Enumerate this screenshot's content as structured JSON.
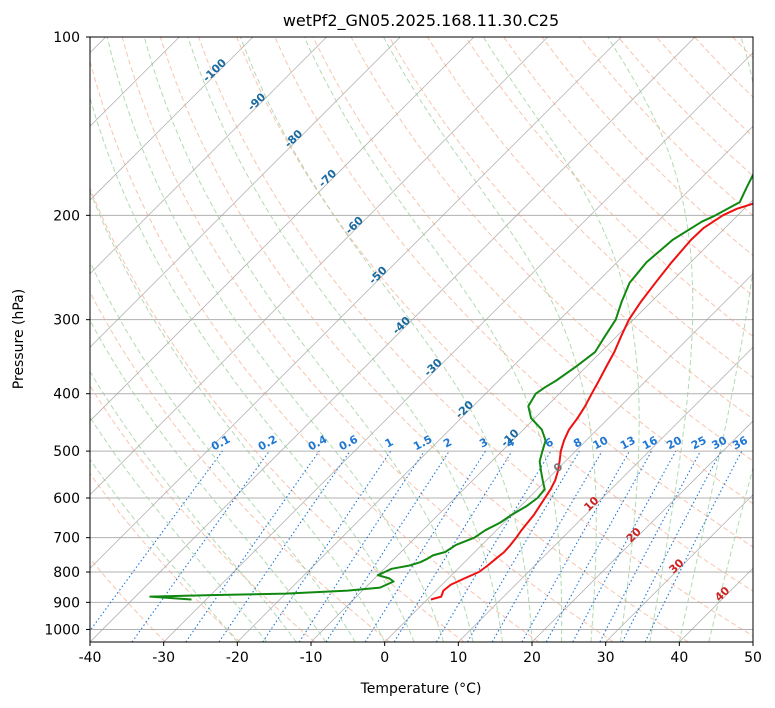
{
  "chart_data": {
    "type": "line",
    "title": "wetPf2_GN05.2025.168.11.30.C25",
    "xlabel": "Temperature (°C)",
    "ylabel": "Pressure (hPa)",
    "xlim": [
      -40,
      50
    ],
    "ylim": [
      1050,
      100
    ],
    "y_scale": "log",
    "grid": true,
    "x_ticks": [
      -40,
      -30,
      -20,
      -10,
      0,
      10,
      20,
      30,
      40,
      50
    ],
    "y_ticks": [
      100,
      200,
      300,
      400,
      500,
      600,
      700,
      800,
      900,
      1000
    ],
    "colors": {
      "temperature": "#ee1111",
      "dewpoint": "#118811",
      "isotherm": "#999999",
      "dry_adiabat": "#f4a582",
      "moist_adiabat": "#99cc99",
      "mixing_ratio": "#1f77d4",
      "dry_adiabat_label": "#1a6aa0",
      "moist_adiabat_label": "#cc2222",
      "zero_label": "#777777"
    },
    "series": [
      {
        "pressure": [
          890,
          880,
          860,
          840,
          820,
          800,
          780,
          760,
          740,
          720,
          700,
          680,
          660,
          640,
          620,
          600,
          580,
          560,
          540,
          520,
          500,
          480,
          460,
          440,
          420,
          400,
          380,
          360,
          340,
          320,
          300,
          280,
          260,
          240,
          220,
          210,
          200,
          195,
          190,
          185,
          180,
          175,
          170,
          165,
          160,
          150,
          140,
          130,
          120,
          115,
          110,
          105,
          100
        ],
        "values": [
          0.5,
          1.5,
          1.0,
          1.2,
          2.2,
          3.3,
          3.6,
          3.8,
          4.0,
          3.9,
          3.7,
          3.4,
          3.2,
          3.0,
          2.6,
          2.2,
          1.8,
          1.2,
          0.3,
          -0.8,
          -2.0,
          -3.0,
          -3.8,
          -4.2,
          -4.8,
          -5.6,
          -6.4,
          -7.3,
          -8.2,
          -9.4,
          -10.6,
          -11.4,
          -12.0,
          -12.6,
          -13.0,
          -12.9,
          -12.0,
          -11.0,
          -9.0,
          -6.0,
          -3.0,
          1.5,
          6.0,
          10.5,
          14.5,
          20.0,
          26.0,
          29.0,
          32.0,
          34.0,
          36.0,
          38.0,
          40.0
        ]
      },
      {
        "pressure": [
          890,
          880,
          875,
          870,
          860,
          850,
          830,
          820,
          810,
          800,
          790,
          780,
          770,
          760,
          750,
          740,
          720,
          700,
          680,
          660,
          640,
          620,
          600,
          580,
          560,
          540,
          520,
          500,
          480,
          460,
          440,
          420,
          400,
          390,
          380,
          360,
          340,
          320,
          300,
          280,
          260,
          240,
          220,
          205,
          200,
          190,
          180,
          170,
          165,
          160,
          150,
          140,
          130,
          120,
          110,
          100
        ],
        "values": [
          -32.0,
          -38.0,
          -30.0,
          -20.0,
          -12.0,
          -8.0,
          -7.0,
          -8.0,
          -10.0,
          -9.5,
          -9.0,
          -7.0,
          -6.0,
          -5.5,
          -5.2,
          -4.0,
          -3.5,
          -2.0,
          -1.5,
          -0.5,
          0.0,
          0.8,
          1.2,
          1.0,
          -0.5,
          -2.0,
          -3.5,
          -4.5,
          -5.5,
          -7.5,
          -10.5,
          -12.5,
          -13.2,
          -12.8,
          -12.2,
          -11.4,
          -10.8,
          -11.6,
          -12.4,
          -14.0,
          -15.5,
          -16.0,
          -15.5,
          -14.0,
          -13.0,
          -11.5,
          -12.5,
          -13.5,
          -13.0,
          -12.0,
          -11.5,
          -10.0,
          -8.0,
          -5.5,
          -3.0,
          -2.0
        ]
      }
    ],
    "dry_adiabat_labels": [
      "-100",
      "-90",
      "-80",
      "-70",
      "-60",
      "-50",
      "-40",
      "-30",
      "-20",
      "-10"
    ],
    "dry_adiabat_label_values": [
      -100,
      -90,
      -80,
      -70,
      -60,
      -50,
      -40,
      -30,
      -20,
      -10
    ],
    "zero_label": "0",
    "moist_adiabat_labels": [
      "10",
      "20",
      "30",
      "40"
    ],
    "moist_adiabat_label_values": [
      10,
      20,
      30,
      40
    ],
    "mixing_ratio_labels": [
      "0.1",
      "0.2",
      "0.4",
      "0.6",
      "1",
      "1.5",
      "2",
      "3",
      "4",
      "6",
      "8",
      "10",
      "13",
      "16",
      "20",
      "25",
      "30",
      "36"
    ],
    "mixing_ratio_values": [
      0.1,
      0.2,
      0.4,
      0.6,
      1,
      1.5,
      2,
      3,
      4,
      6,
      8,
      10,
      13,
      16,
      20,
      25,
      30,
      36
    ]
  }
}
